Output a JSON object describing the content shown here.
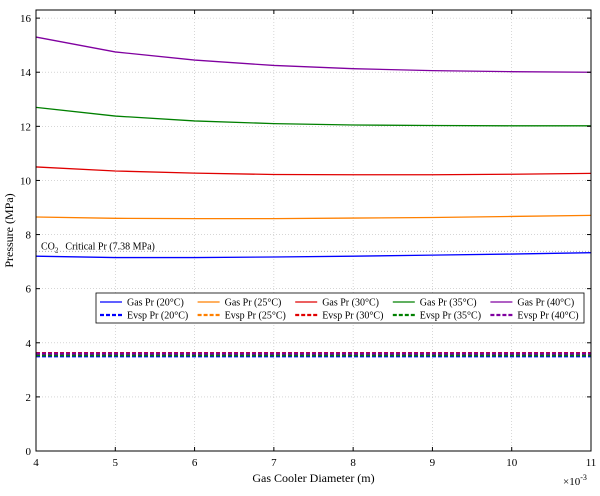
{
  "chart_data": {
    "type": "line",
    "xlabel": "Gas Cooler Diameter (m)",
    "ylabel": "Pressure (MPa)",
    "x_exponent_label": "×10",
    "x_exponent_power": "-3",
    "xlim": [
      4,
      11
    ],
    "ylim": [
      0,
      16.3
    ],
    "xticks": [
      4,
      5,
      6,
      7,
      8,
      9,
      10,
      11
    ],
    "yticks": [
      0,
      2,
      4,
      6,
      8,
      10,
      12,
      14,
      16
    ],
    "grid": true,
    "legend_position": "center-right",
    "x": [
      4,
      5,
      6,
      7,
      8,
      9,
      10,
      11
    ],
    "series": [
      {
        "name": "Gas Pr (20°C)",
        "color": "#0000ff",
        "style": "solid",
        "values": [
          7.2,
          7.15,
          7.15,
          7.17,
          7.2,
          7.24,
          7.28,
          7.33
        ]
      },
      {
        "name": "Gas Pr (25°C)",
        "color": "#ff8000",
        "style": "solid",
        "values": [
          8.65,
          8.6,
          8.59,
          8.59,
          8.61,
          8.63,
          8.67,
          8.71
        ]
      },
      {
        "name": "Gas Pr (30°C)",
        "color": "#e00000",
        "style": "solid",
        "values": [
          10.5,
          10.35,
          10.27,
          10.22,
          10.21,
          10.21,
          10.23,
          10.26
        ]
      },
      {
        "name": "Gas Pr (35°C)",
        "color": "#008000",
        "style": "solid",
        "values": [
          12.7,
          12.38,
          12.2,
          12.1,
          12.05,
          12.03,
          12.02,
          12.02
        ]
      },
      {
        "name": "Gas Pr (40°C)",
        "color": "#8000a0",
        "style": "solid",
        "values": [
          15.3,
          14.75,
          14.45,
          14.25,
          14.13,
          14.06,
          14.02,
          14.0
        ]
      },
      {
        "name": "Evsp Pr (20°C)",
        "color": "#0000ff",
        "style": "dashed",
        "values": [
          3.5,
          3.5,
          3.5,
          3.5,
          3.5,
          3.5,
          3.5,
          3.5
        ]
      },
      {
        "name": "Evsp Pr (25°C)",
        "color": "#ff8000",
        "style": "dashed",
        "values": [
          3.56,
          3.56,
          3.56,
          3.56,
          3.56,
          3.56,
          3.56,
          3.56
        ]
      },
      {
        "name": "Evsp Pr (30°C)",
        "color": "#e00000",
        "style": "dashed",
        "values": [
          3.62,
          3.62,
          3.62,
          3.62,
          3.62,
          3.62,
          3.62,
          3.62
        ]
      },
      {
        "name": "Evsp Pr (35°C)",
        "color": "#008000",
        "style": "dashed",
        "values": [
          3.54,
          3.54,
          3.54,
          3.54,
          3.54,
          3.54,
          3.54,
          3.54
        ]
      },
      {
        "name": "Evsp Pr (40°C)",
        "color": "#8000a0",
        "style": "dashed",
        "values": [
          3.6,
          3.6,
          3.6,
          3.6,
          3.6,
          3.6,
          3.6,
          3.6
        ]
      }
    ],
    "reference_line": {
      "y": 7.38,
      "color": "#a0a0a0",
      "style": "dotted",
      "label_prefix": "CO",
      "label_subscript": "2",
      "label_text": "Critical Pr (7.38 MPa)"
    }
  }
}
